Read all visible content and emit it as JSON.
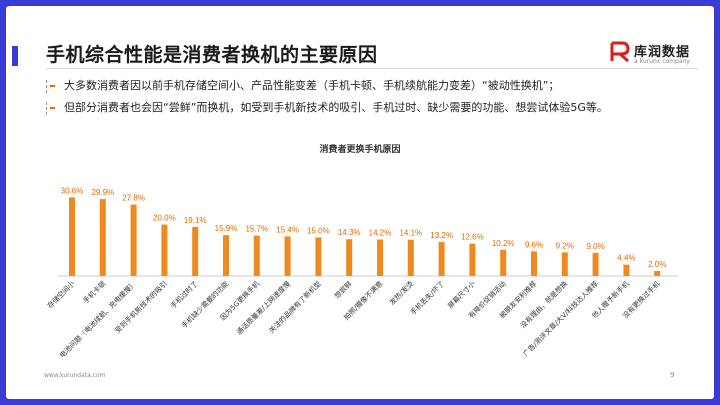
{
  "title": "手机综合性能是消费者换机的主要原因",
  "logo": {
    "name": "库润数据",
    "sub": "a kurunx company"
  },
  "bullets": [
    "大多数消费者因以前手机存储空间小、产品性能变差（手机卡顿、手机续航能力变差）“被动性换机”；",
    "但部分消费者也会因“尝鲜”而换机，如受到手机新技术的吸引、手机过时、缺少需要的功能、想尝试体验5G等。"
  ],
  "footer": {
    "url": "www.kurundata.com",
    "page": "9"
  },
  "colors": {
    "accent": "#3b3bd6",
    "bar": "#f08a1e",
    "label": "#e06b00"
  },
  "chart_data": {
    "type": "bar",
    "title": "消费者更换手机原因",
    "categories": [
      "存储空间小",
      "手机卡顿",
      "电池问题（电池续航、充电缓慢）",
      "受到手机新技术的吸引",
      "手机过时了",
      "手机缺少需要的功能",
      "因为5G更换手机",
      "通话质量差/上网速度慢",
      "关注的品牌有了新机型",
      "想尝鲜",
      "拍照/摄像不满意",
      "发热/发烫",
      "手机丢失/坏了",
      "屏幕尺寸小",
      "有降价促销活动",
      "被朋友安利推荐",
      "没有理由，就是想换",
      "广告/测评文章/大V/科技达人推荐",
      "他人赠予新手机",
      "没有更换过手机"
    ],
    "values": [
      30.6,
      29.9,
      27.8,
      20.0,
      19.1,
      15.9,
      15.7,
      15.4,
      15.0,
      14.3,
      14.2,
      14.1,
      13.2,
      12.6,
      10.2,
      9.6,
      9.2,
      9.0,
      4.4,
      2.0
    ],
    "value_labels": [
      "30.6%",
      "29.9%",
      "27.8%",
      "20.0%",
      "19.1%",
      "15.9%",
      "15.7%",
      "15.4%",
      "15.0%",
      "14.3%",
      "14.2%",
      "14.1%",
      "13.2%",
      "12.6%",
      "10.2%",
      "9.6%",
      "9.2%",
      "9.0%",
      "4.4%",
      "2.0%"
    ],
    "ylim": [
      0,
      35
    ],
    "grid": false,
    "legend": "none"
  }
}
